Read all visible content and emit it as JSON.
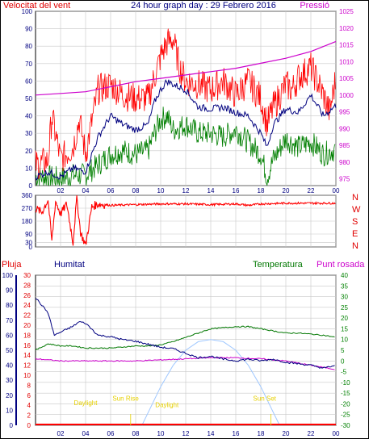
{
  "title": "24 hour graph day : 29 Febrero 2016",
  "labels": {
    "wind": "Velocitat del vent",
    "pressure": "Pressió",
    "rain": "Pluja",
    "humidity": "Humitat",
    "temperature": "Temperatura",
    "dewpoint": "Punt rosada",
    "compass": [
      "N",
      "W",
      "S",
      "E",
      "N"
    ],
    "sun": [
      {
        "text": "Daylight",
        "hour": 4.0,
        "level": -20.5,
        "color": "#e6d000"
      },
      {
        "text": "Sun Rise",
        "hour": 7.2,
        "level": -18.5,
        "color": "#e6d000"
      },
      {
        "text": "Sun Set",
        "hour": 18.3,
        "level": -18.5,
        "color": "#e6d000"
      },
      {
        "text": "Daylight",
        "hour": 10.5,
        "level": -21.5,
        "color": "#e6d000"
      }
    ]
  },
  "colors": {
    "border": "#000000",
    "grid": "#c8c8c8",
    "wind_gust": "#ff0000",
    "wind_avg": "#00007f",
    "wind_green": "#007f00",
    "pressure": "#cc00cc",
    "direction": "#ff0000",
    "humidity": "#000080",
    "temperature": "#007700",
    "dewpoint": "#cc00cc",
    "sun_curve": "#a0c8ff",
    "rain": "#ff0000",
    "title": "#000080",
    "axis_text": "#000080",
    "temp_axis_text": "#008000"
  },
  "chart_data": [
    {
      "type": "line",
      "name": "wind-and-pressure",
      "x_ticks": [
        "02",
        "04",
        "06",
        "08",
        "10",
        "12",
        "14",
        "16",
        "18",
        "20",
        "22",
        "00"
      ],
      "x_tick_hours": [
        2,
        4,
        6,
        8,
        10,
        12,
        14,
        16,
        18,
        20,
        22,
        24
      ],
      "xlim": [
        0,
        24
      ],
      "ylim": [
        0,
        100
      ],
      "y_ticks": [
        0,
        10,
        20,
        30,
        40,
        50,
        60,
        70,
        80,
        90,
        100
      ],
      "y2lim": [
        973,
        1025
      ],
      "y2_ticks": [
        975,
        980,
        985,
        990,
        995,
        1000,
        1005,
        1010,
        1015,
        1020,
        1025
      ],
      "series": [
        {
          "key": "gust",
          "axis": "y",
          "x": [
            0,
            1,
            1.3,
            2,
            3,
            3.5,
            4,
            5,
            6,
            7,
            8,
            9,
            9.5,
            10,
            10.5,
            11,
            11.5,
            12,
            13,
            14,
            15,
            16,
            17,
            18,
            18.5,
            19,
            20,
            20.5,
            21,
            22,
            23,
            23.5,
            24
          ],
          "values": [
            12,
            14,
            40,
            15,
            22,
            38,
            18,
            55,
            58,
            52,
            50,
            50,
            62,
            74,
            82,
            84,
            68,
            60,
            58,
            55,
            60,
            52,
            60,
            50,
            35,
            45,
            58,
            55,
            62,
            68,
            52,
            42,
            62
          ]
        },
        {
          "key": "avg",
          "axis": "y",
          "x": [
            0,
            1,
            2,
            3,
            4,
            5,
            6,
            7,
            8,
            9,
            9.5,
            10,
            10.5,
            11,
            12,
            13,
            14,
            15,
            16,
            17,
            18,
            18.5,
            19,
            20,
            21,
            22,
            23,
            24
          ],
          "values": [
            5,
            8,
            5,
            10,
            8,
            28,
            40,
            35,
            32,
            35,
            48,
            55,
            60,
            58,
            55,
            45,
            44,
            45,
            42,
            40,
            30,
            22,
            35,
            44,
            42,
            52,
            40,
            46
          ]
        },
        {
          "key": "green",
          "axis": "y",
          "x": [
            0,
            1,
            2,
            3,
            4,
            5,
            6,
            7,
            8,
            9,
            9.5,
            10,
            10.5,
            11,
            12,
            13,
            14,
            15,
            16,
            17,
            18,
            18.5,
            19,
            20,
            21,
            22,
            23,
            24
          ],
          "values": [
            5,
            5,
            4,
            6,
            6,
            12,
            18,
            20,
            18,
            20,
            30,
            38,
            40,
            32,
            35,
            30,
            30,
            28,
            32,
            25,
            18,
            5,
            15,
            27,
            22,
            25,
            18,
            21
          ]
        },
        {
          "key": "pressure",
          "axis": "y2",
          "x": [
            0,
            2,
            4,
            6,
            8,
            10,
            12,
            14,
            16,
            18,
            20,
            22,
            24
          ],
          "values": [
            1000,
            1000.5,
            1001,
            1002.5,
            1004,
            1005,
            1006,
            1007,
            1008,
            1009.5,
            1011,
            1013,
            1016
          ]
        }
      ]
    },
    {
      "type": "scatter",
      "name": "wind-direction",
      "ylim": [
        0,
        360
      ],
      "y_ticks": [
        0,
        30,
        90,
        180,
        270,
        360
      ],
      "x": [
        0,
        0.5,
        1,
        1.3,
        1.6,
        2,
        2.5,
        3,
        3.3,
        3.6,
        4,
        4.5,
        5,
        6,
        8,
        10,
        12,
        14,
        16,
        17,
        18,
        20,
        22,
        24
      ],
      "values": [
        270,
        240,
        330,
        40,
        320,
        230,
        300,
        30,
        350,
        100,
        10,
        280,
        300,
        290,
        295,
        300,
        300,
        295,
        300,
        290,
        300,
        305,
        305,
        305
      ]
    },
    {
      "type": "line",
      "name": "humidity-temperature",
      "x_ticks": [
        "02",
        "04",
        "06",
        "08",
        "10",
        "12",
        "14",
        "16",
        "18",
        "20",
        "22",
        "00"
      ],
      "x_tick_hours": [
        2,
        4,
        6,
        8,
        10,
        12,
        14,
        16,
        18,
        20,
        22,
        24
      ],
      "xlim": [
        0,
        24
      ],
      "humidity_ylim": [
        0,
        100
      ],
      "humidity_ticks": [
        0,
        10,
        20,
        30,
        40,
        50,
        60,
        70,
        80,
        90,
        100
      ],
      "rain_ylim": [
        0,
        30
      ],
      "rain_ticks": [
        0,
        2,
        4,
        6,
        8,
        10,
        12,
        14,
        16,
        18,
        20,
        22,
        24,
        26,
        28,
        30
      ],
      "temp_ylim": [
        -30,
        40
      ],
      "temp_ticks": [
        -30,
        -25,
        -20,
        -15,
        -10,
        -5,
        0,
        5,
        10,
        15,
        20,
        25,
        30,
        35,
        40
      ],
      "series": [
        {
          "key": "humidity",
          "x": [
            0,
            1,
            1.5,
            2,
            3,
            3.5,
            4,
            5,
            6,
            7,
            8,
            9,
            10,
            11,
            12,
            13,
            14,
            15,
            16,
            17,
            18,
            19,
            20,
            21,
            22,
            23,
            24
          ],
          "values": [
            85,
            75,
            60,
            62,
            66,
            69,
            68,
            60,
            59,
            57,
            56,
            54,
            52,
            51,
            48,
            45,
            46,
            44,
            43,
            44,
            43,
            44,
            42,
            41,
            40,
            38,
            40
          ]
        },
        {
          "key": "temperature",
          "x": [
            0,
            1,
            2,
            3,
            4,
            5,
            6,
            7,
            8,
            9,
            10,
            11,
            12,
            13,
            14,
            15,
            16,
            17,
            18,
            19,
            20,
            21,
            22,
            23,
            24
          ],
          "values": [
            5,
            8,
            7,
            7,
            6,
            6,
            6,
            6.5,
            7,
            7,
            7.5,
            9,
            11,
            13,
            15,
            15.5,
            16,
            16,
            15,
            14,
            13,
            13,
            12.5,
            12,
            11
          ]
        },
        {
          "key": "dewpoint",
          "x": [
            0,
            2,
            4,
            6,
            8,
            10,
            12,
            14,
            16,
            18,
            20,
            22,
            24
          ],
          "values": [
            1,
            0,
            0,
            0,
            0,
            0.5,
            1,
            1.5,
            1.5,
            1,
            0,
            -2,
            -4
          ]
        },
        {
          "key": "sun",
          "x": [
            8.5,
            10,
            11,
            12,
            13,
            14,
            15,
            16,
            17,
            18,
            19,
            19.5
          ],
          "values": [
            -30,
            -12,
            -2,
            5,
            9,
            10,
            9,
            5,
            -2,
            -12,
            -24,
            -30
          ]
        }
      ]
    }
  ]
}
